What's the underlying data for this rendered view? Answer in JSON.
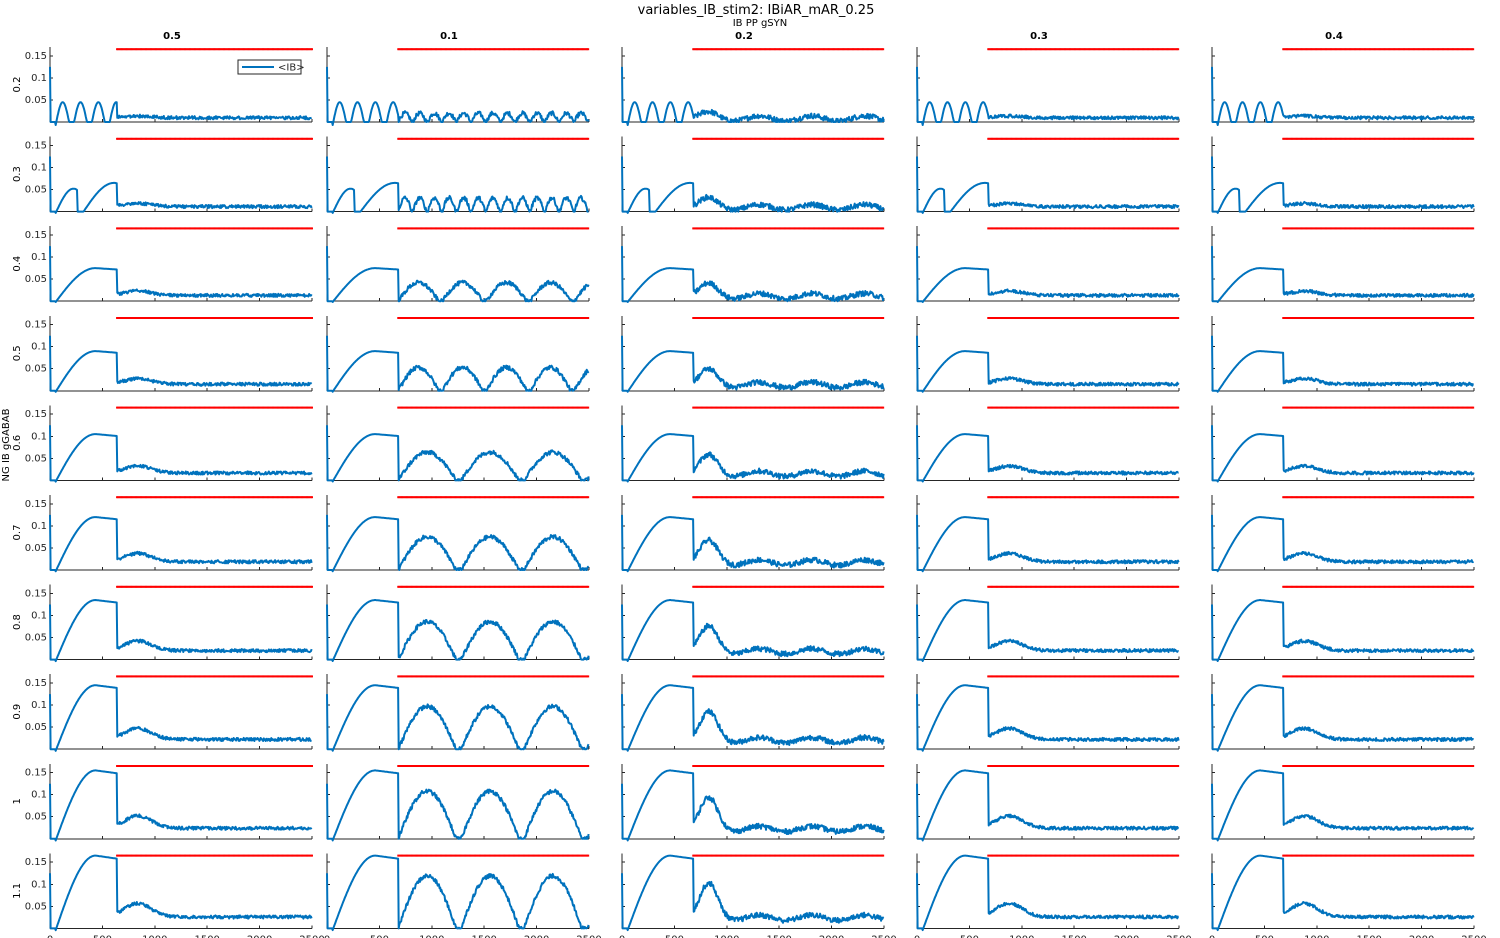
{
  "figure": {
    "title": "variables_IB_stim2: IBiAR_mAR_0.25",
    "col_axis_label": "IB PP gSYN",
    "row_axis_label": "NG IB gGABAB",
    "legend_label": "<IB>"
  },
  "colors": {
    "trace": "#0072BD",
    "stim_marker": "#FF0000",
    "axis": "#262626"
  },
  "chart_data": {
    "type": "line",
    "layout": "grid 10 rows x 5 columns of small-multiple line plots",
    "column_values": [
      "0.5",
      "0.1",
      "0.2",
      "0.3",
      "0.4"
    ],
    "row_values": [
      "0.2",
      "0.3",
      "0.4",
      "0.5",
      "0.6",
      "0.7",
      "0.8",
      "0.9",
      "1",
      "1.1"
    ],
    "series": [
      {
        "name": "<IB>"
      }
    ],
    "xlim": [
      0,
      2500
    ],
    "ylim": [
      0,
      0.17
    ],
    "x_ticks": [
      0,
      500,
      1000,
      1500,
      2000,
      2500
    ],
    "x_tick_labels": [
      "0",
      "500",
      "1000",
      "1500",
      "2000",
      "2500"
    ],
    "y_ticks": [
      0.05,
      0.1,
      0.15
    ],
    "y_tick_labels": [
      "0.05",
      "0.1",
      "0.15"
    ],
    "stim_marker_y": 0.165,
    "stim_marker_start_by_column": [
      640,
      680,
      680,
      680,
      680
    ],
    "stim_marker_end": 2500,
    "baseline_burst_peak_by_row": [
      0.045,
      0.065,
      0.075,
      0.09,
      0.105,
      0.12,
      0.135,
      0.145,
      0.155,
      0.165
    ],
    "post_stim_mean_by_column": {
      "0.5": "low noisy ~0.01-0.03",
      "0.1": "slow oscillation, peak grows with row",
      "0.2": "low noisy with transient bump after stim",
      "0.3": "low noisy ~0.01-0.04",
      "0.4": "low noisy ~0.01-0.03"
    },
    "legend_position": "top-right of first panel",
    "grid": false
  }
}
